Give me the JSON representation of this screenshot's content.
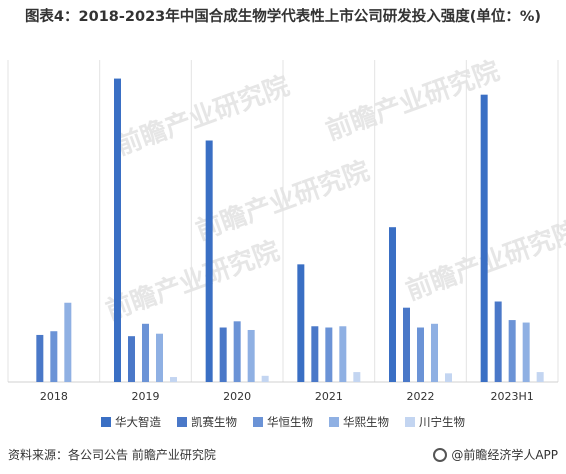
{
  "title": "图表4：2018-2023年中国合成生物学代表性上市公司研发投入强度(单位：%)",
  "source": "资料来源：各公司公告 前瞻产业研究院",
  "brand": "@前瞻经济学人APP",
  "watermark": "前瞻产业研究院",
  "chart_data": {
    "type": "bar",
    "categories": [
      "2018",
      "2019",
      "2020",
      "2021",
      "2022",
      "2023H1"
    ],
    "series": [
      {
        "name": "华大智造",
        "color": "#3a6fc4",
        "values": [
          null,
          24.5,
          19.5,
          9.5,
          12.5,
          23.2
        ]
      },
      {
        "name": "凯赛生物",
        "color": "#4a78c8",
        "values": [
          3.8,
          3.7,
          4.4,
          4.5,
          6.0,
          6.5
        ]
      },
      {
        "name": "华恒生物",
        "color": "#6b93d6",
        "values": [
          4.1,
          4.7,
          4.9,
          4.4,
          4.4,
          5.0
        ]
      },
      {
        "name": "华熙生物",
        "color": "#8fb0e3",
        "values": [
          6.4,
          3.9,
          4.2,
          4.5,
          4.7,
          4.8
        ]
      },
      {
        "name": "川宁生物",
        "color": "#c3d5f1",
        "values": [
          null,
          0.4,
          0.5,
          0.8,
          0.7,
          0.8
        ]
      }
    ],
    "ylim": [
      0,
      26
    ],
    "grid": false,
    "legend": "bottom"
  }
}
